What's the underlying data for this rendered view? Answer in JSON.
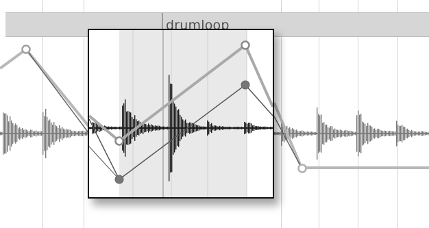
{
  "clip": {
    "name": "drumloop"
  },
  "colors": {
    "background": "#ffffff",
    "clip_header": "#d6d6d6",
    "waveform": "#777777",
    "waveform_zoomed": "#1a1a1a",
    "envelope_light": "#b5b5b5",
    "envelope_dark": "#6a6a6a",
    "zoom_selection": "#e8e8e8"
  },
  "icons": {
    "breakpoint": "circle-handle-icon"
  }
}
